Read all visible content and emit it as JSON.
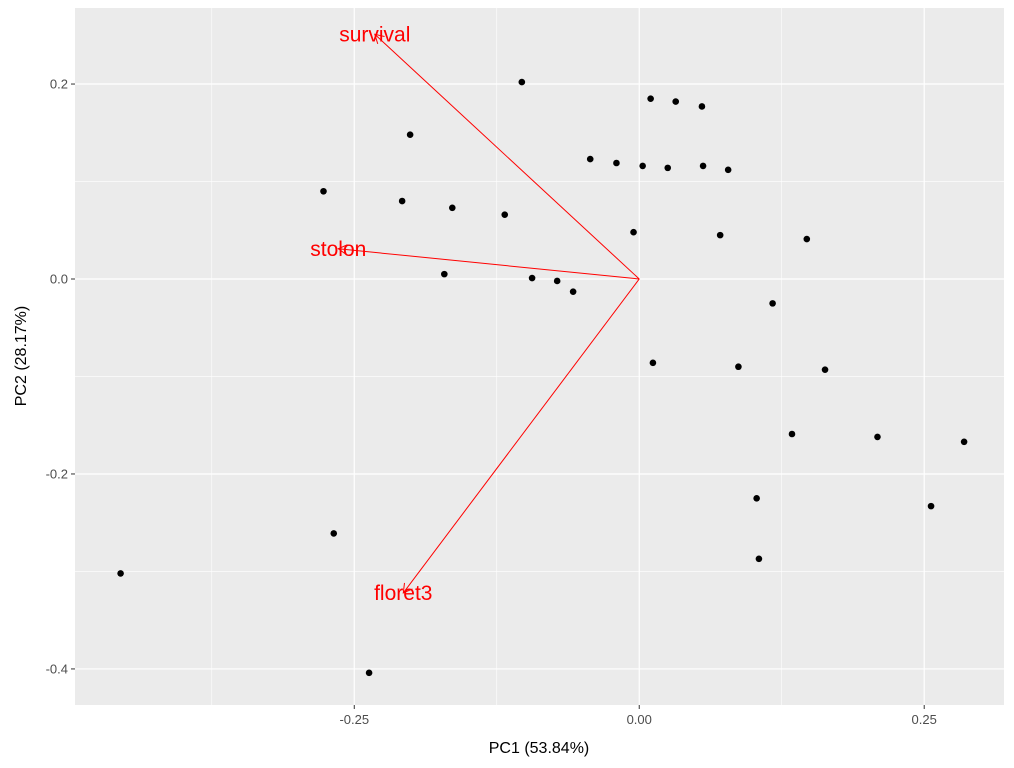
{
  "chart_data": {
    "type": "scatter",
    "title": "",
    "xlabel": "PC1 (53.84%)",
    "ylabel": "PC2 (28.17%)",
    "xlim": [
      -0.495,
      0.32
    ],
    "ylim": [
      -0.437,
      0.278
    ],
    "x_ticks": [
      -0.25,
      0.0,
      0.25
    ],
    "x_tick_labels": [
      "-0.25",
      "0.00",
      "0.25"
    ],
    "y_ticks": [
      -0.4,
      -0.2,
      0.0,
      0.2
    ],
    "y_tick_labels": [
      "-0.4",
      "-0.2",
      "0.0",
      "0.2"
    ],
    "grid": true,
    "colors": {
      "panel": "#ebebeb",
      "grid": "#ffffff",
      "points": "#000000",
      "loadings": "#ff0000"
    },
    "points": [
      [
        -0.455,
        -0.302
      ],
      [
        -0.277,
        0.09
      ],
      [
        -0.268,
        -0.261
      ],
      [
        -0.237,
        -0.404
      ],
      [
        -0.208,
        0.08
      ],
      [
        -0.201,
        0.148
      ],
      [
        -0.171,
        0.005
      ],
      [
        -0.164,
        0.073
      ],
      [
        -0.118,
        0.066
      ],
      [
        -0.103,
        0.202
      ],
      [
        -0.094,
        0.001
      ],
      [
        -0.072,
        -0.002
      ],
      [
        -0.058,
        -0.013
      ],
      [
        -0.043,
        0.123
      ],
      [
        -0.02,
        0.119
      ],
      [
        -0.005,
        0.048
      ],
      [
        0.003,
        0.116
      ],
      [
        0.01,
        0.185
      ],
      [
        0.012,
        -0.086
      ],
      [
        0.025,
        0.114
      ],
      [
        0.032,
        0.182
      ],
      [
        0.055,
        0.177
      ],
      [
        0.056,
        0.116
      ],
      [
        0.071,
        0.045
      ],
      [
        0.078,
        0.112
      ],
      [
        0.087,
        -0.09
      ],
      [
        0.103,
        -0.225
      ],
      [
        0.105,
        -0.287
      ],
      [
        0.117,
        -0.025
      ],
      [
        0.134,
        -0.159
      ],
      [
        0.147,
        0.041
      ],
      [
        0.163,
        -0.093
      ],
      [
        0.209,
        -0.162
      ],
      [
        0.256,
        -0.233
      ],
      [
        0.285,
        -0.167
      ]
    ],
    "loadings": [
      {
        "name": "survival",
        "x": -0.232,
        "y": 0.251
      },
      {
        "name": "stolon",
        "x": -0.264,
        "y": 0.031
      },
      {
        "name": "floret3",
        "x": -0.207,
        "y": -0.322
      }
    ]
  }
}
